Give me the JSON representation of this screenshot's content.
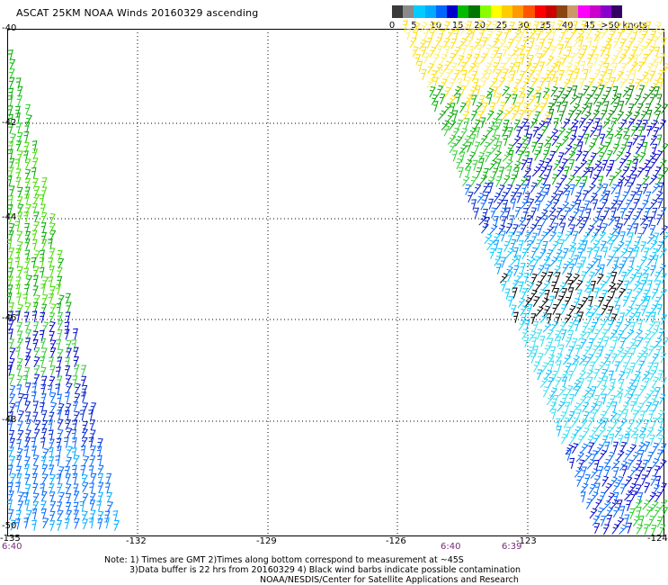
{
  "title": "ASCAT 25KM NOAA Winds 20160329 ascending",
  "colorbar": {
    "colors": [
      "#3a3a3a",
      "#8a8a8a",
      "#00ccff",
      "#00aaff",
      "#0066ff",
      "#0000cc",
      "#00bb00",
      "#007700",
      "#88ff00",
      "#ffff00",
      "#ffcc00",
      "#ff9900",
      "#ff5500",
      "#ff0000",
      "#cc0000",
      "#8b4513",
      "#cc9966",
      "#ff00ff",
      "#cc00cc",
      "#8800cc",
      "#330066"
    ],
    "labels": [
      "0",
      "5",
      "10",
      "15",
      "20",
      "25",
      "30",
      "35",
      "40",
      "45",
      ">50 knots"
    ]
  },
  "lat_labels": [
    "-40",
    "-42",
    "-44",
    "-46",
    "-48",
    "-50"
  ],
  "lon_labels": [
    "-135",
    "-132",
    "-129",
    "-126",
    "-123",
    "-124"
  ],
  "time_labels": [
    "6:40",
    "6:40",
    "6:39"
  ],
  "notes": [
    "Note: 1) Times are GMT 2)Times along bottom correspond to measurement at ~45S",
    "3)Data buffer is 22 hrs from 20160329 4) Black wind barbs indicate possible contamination",
    "NOAA/NESDIS/Center for Satellite Applications and Research"
  ]
}
